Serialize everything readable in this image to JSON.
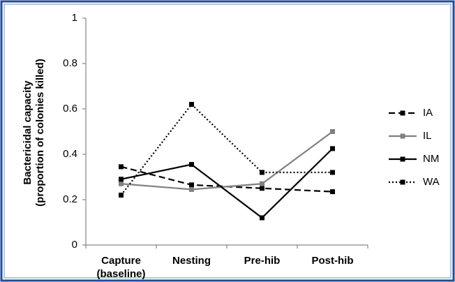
{
  "chart_data": {
    "type": "line",
    "ylabel": [
      "Bactericidal capacity",
      "(proportion of colonies killed)"
    ],
    "categories": [
      "Capture (baseline)",
      "Nesting",
      "Pre-hib",
      "Post-hib"
    ],
    "series": [
      {
        "name": "IA",
        "color": "#000000",
        "style": "dashed",
        "values": [
          0.345,
          0.265,
          0.25,
          0.235
        ]
      },
      {
        "name": "IL",
        "color": "#808080",
        "style": "solid",
        "values": [
          0.27,
          0.245,
          0.27,
          0.5
        ]
      },
      {
        "name": "NM",
        "color": "#000000",
        "style": "solid",
        "values": [
          0.29,
          0.355,
          0.12,
          0.425
        ]
      },
      {
        "name": "WA",
        "color": "#000000",
        "style": "dotted",
        "values": [
          0.22,
          0.62,
          0.32,
          0.32
        ]
      }
    ],
    "ylim": [
      0,
      1
    ],
    "yticks": [
      0,
      0.2,
      0.4,
      0.6,
      0.8,
      1
    ],
    "grid": false,
    "legend": "right"
  }
}
